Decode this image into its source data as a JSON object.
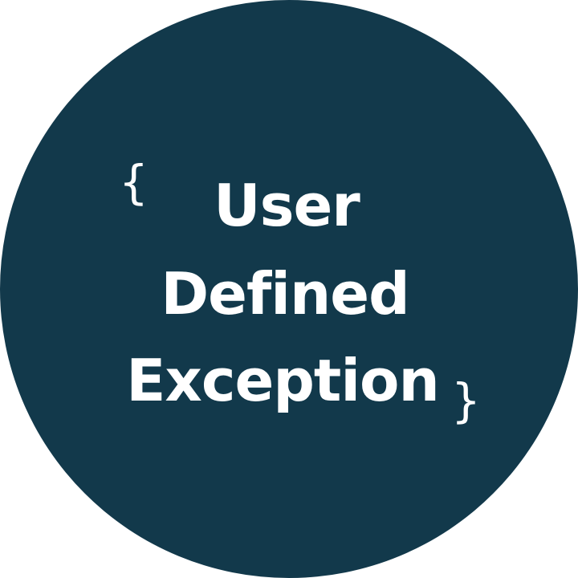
{
  "badge": {
    "open_brace": "{",
    "close_brace": "}",
    "lines": [
      "User",
      "Defined",
      "Exception"
    ],
    "colors": {
      "circle": "#12394b",
      "text": "#ffffff",
      "background": "#ffffff"
    }
  }
}
